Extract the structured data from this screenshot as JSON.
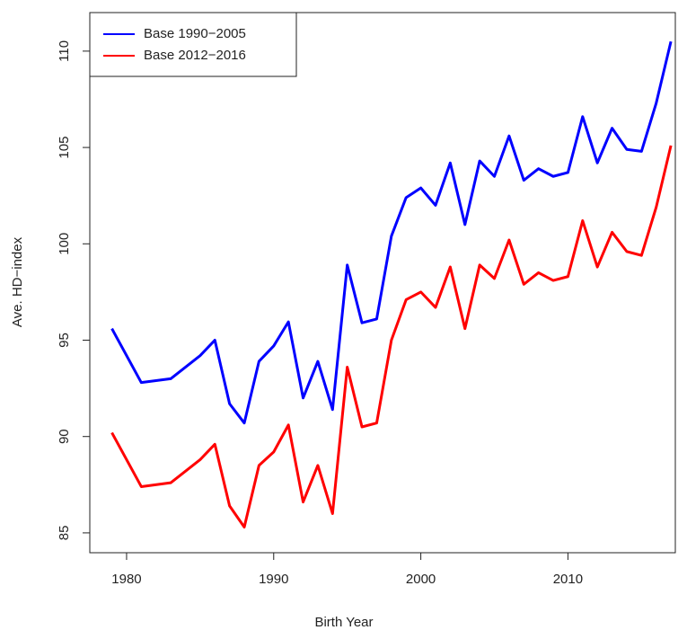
{
  "chart_data": {
    "type": "line",
    "xlabel": "Birth Year",
    "ylabel": "Ave. HD−index",
    "x": [
      1979,
      1981,
      1983,
      1985,
      1986,
      1987,
      1988,
      1989,
      1990,
      1991,
      1992,
      1993,
      1994,
      1995,
      1996,
      1997,
      1998,
      1999,
      2000,
      2001,
      2002,
      2003,
      2004,
      2005,
      2006,
      2007,
      2008,
      2009,
      2010,
      2011,
      2012,
      2013,
      2014,
      2015,
      2016,
      2017
    ],
    "series": [
      {
        "name": "Base 1990−2005",
        "color": "#0000ff",
        "values": [
          95.6,
          92.8,
          93.0,
          94.2,
          95.0,
          91.7,
          90.7,
          93.9,
          94.7,
          95.95,
          92.0,
          93.9,
          91.4,
          98.9,
          95.9,
          96.1,
          100.4,
          102.4,
          102.9,
          102.0,
          104.2,
          101.0,
          104.3,
          103.5,
          105.6,
          103.3,
          103.9,
          103.5,
          103.7,
          106.6,
          104.2,
          106.0,
          104.9,
          104.8,
          107.3,
          110.5
        ]
      },
      {
        "name": "Base 2012−2016",
        "color": "#ff0000",
        "values": [
          90.2,
          87.4,
          87.6,
          88.8,
          89.6,
          86.4,
          85.3,
          88.5,
          89.2,
          90.6,
          86.6,
          88.5,
          86.0,
          93.6,
          90.5,
          90.7,
          95.0,
          97.1,
          97.5,
          96.7,
          98.8,
          95.6,
          98.9,
          98.2,
          100.2,
          97.9,
          98.5,
          98.1,
          98.3,
          101.2,
          98.8,
          100.6,
          99.6,
          99.4,
          101.9,
          105.1
        ]
      }
    ],
    "xlim": [
      1977.5,
      2017.3
    ],
    "xticks": [
      1980,
      1990,
      2000,
      2010
    ],
    "ylim": [
      83.97,
      112.0
    ],
    "yticks": [
      85,
      90,
      95,
      100,
      105,
      110
    ],
    "legend": "top-left"
  }
}
